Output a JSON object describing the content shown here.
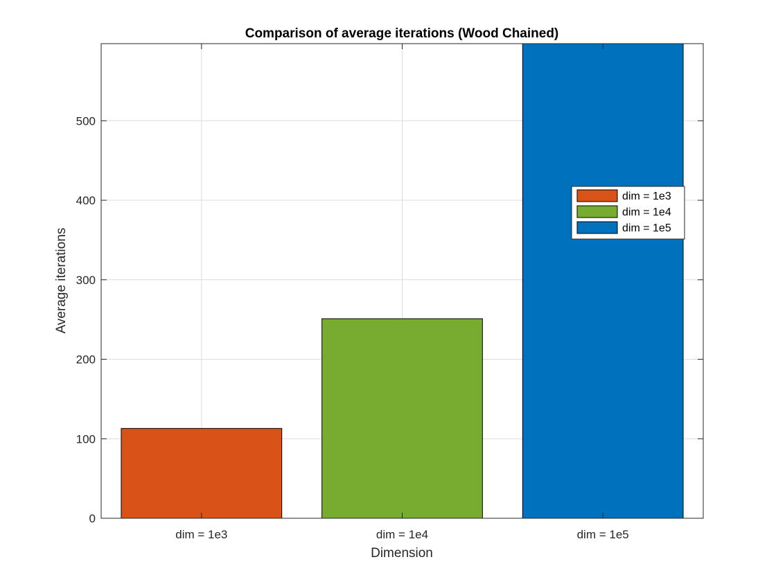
{
  "chart_data": {
    "type": "bar",
    "title": "Comparison of average iterations (Wood Chained)",
    "xlabel": "Dimension",
    "ylabel": "Average iterations",
    "categories": [
      "dim = 1e3",
      "dim = 1e4",
      "dim = 1e5"
    ],
    "values": [
      113,
      251,
      597
    ],
    "colors": [
      "#D95319",
      "#77AC30",
      "#0072BD"
    ],
    "ylim": [
      0,
      597
    ],
    "yticks": [
      0,
      100,
      200,
      300,
      400,
      500
    ],
    "grid": true,
    "legend": {
      "placement": "right",
      "entries": [
        "dim = 1e3",
        "dim = 1e4",
        "dim = 1e5"
      ]
    }
  }
}
